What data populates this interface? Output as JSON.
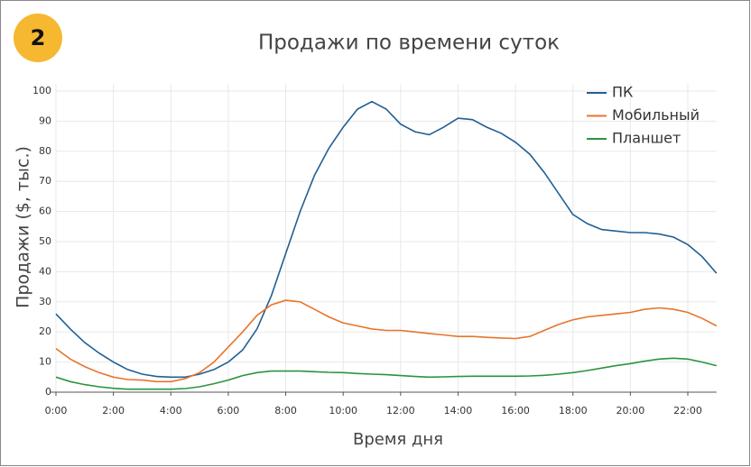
{
  "badge": "2",
  "chart_data": {
    "type": "line",
    "title": "Продажи по времени суток",
    "x_label": "Время дня",
    "y_label": "Продажи ($, тыс.)",
    "x": [
      0,
      0.5,
      1,
      1.5,
      2,
      2.5,
      3,
      3.5,
      4,
      4.5,
      5,
      5.5,
      6,
      6.5,
      7,
      7.5,
      8,
      8.5,
      9,
      9.5,
      10,
      10.5,
      11,
      11.5,
      12,
      12.5,
      13,
      13.5,
      14,
      14.5,
      15,
      15.5,
      16,
      16.5,
      17,
      17.5,
      18,
      18.5,
      19,
      19.5,
      20,
      20.5,
      21,
      21.5,
      22,
      22.5,
      23
    ],
    "series": [
      {
        "name": "ПК",
        "color": "#1f5f95",
        "values": [
          26,
          21,
          16.5,
          13,
          10,
          7.5,
          6,
          5.2,
          5,
          5,
          6,
          7.5,
          10,
          14,
          21,
          32,
          46,
          60,
          72,
          81,
          88,
          94,
          96.5,
          94,
          89,
          86.5,
          85.5,
          88,
          91,
          90.5,
          88,
          86,
          83,
          79,
          73,
          66,
          59,
          56,
          54,
          53.5,
          53,
          53,
          52.5,
          51.5,
          49,
          45,
          39.5
        ]
      },
      {
        "name": "Мобильный",
        "color": "#e8742c",
        "values": [
          14.5,
          11,
          8.5,
          6.5,
          5,
          4.2,
          4,
          3.5,
          3.5,
          4.5,
          6.5,
          10,
          15,
          20,
          25.5,
          29,
          30.5,
          30,
          27.5,
          25,
          23,
          22,
          21,
          20.5,
          20.5,
          20,
          19.5,
          19,
          18.5,
          18.5,
          18.2,
          18,
          17.8,
          18.5,
          20.5,
          22.5,
          24,
          25,
          25.5,
          26,
          26.5,
          27.5,
          28,
          27.5,
          26.5,
          24.5,
          22
        ]
      },
      {
        "name": "Планшет",
        "color": "#2a9440",
        "values": [
          5,
          3.5,
          2.5,
          1.8,
          1.3,
          1,
          1,
          1,
          1,
          1.2,
          1.8,
          2.8,
          4,
          5.5,
          6.5,
          7,
          7,
          7,
          6.8,
          6.6,
          6.5,
          6.2,
          6,
          5.8,
          5.5,
          5.2,
          5,
          5.1,
          5.2,
          5.3,
          5.3,
          5.3,
          5.3,
          5.4,
          5.6,
          6,
          6.5,
          7.2,
          8,
          8.8,
          9.5,
          10.3,
          11,
          11.3,
          11,
          10,
          8.8
        ]
      }
    ],
    "xlim": [
      0,
      23
    ],
    "ylim": [
      0,
      100
    ],
    "xticks": [
      {
        "value": 0,
        "label": "0:00"
      },
      {
        "value": 2,
        "label": "2:00"
      },
      {
        "value": 4,
        "label": "4:00"
      },
      {
        "value": 6,
        "label": "6:00"
      },
      {
        "value": 8,
        "label": "8:00"
      },
      {
        "value": 10,
        "label": "10:00"
      },
      {
        "value": 12,
        "label": "12:00"
      },
      {
        "value": 14,
        "label": "14:00"
      },
      {
        "value": 16,
        "label": "16:00"
      },
      {
        "value": 18,
        "label": "18:00"
      },
      {
        "value": 20,
        "label": "20:00"
      },
      {
        "value": 22,
        "label": "22:00"
      }
    ],
    "yticks": [
      0,
      10,
      20,
      30,
      40,
      50,
      60,
      70,
      80,
      90,
      100
    ],
    "grid": true,
    "legend": "top-right"
  }
}
